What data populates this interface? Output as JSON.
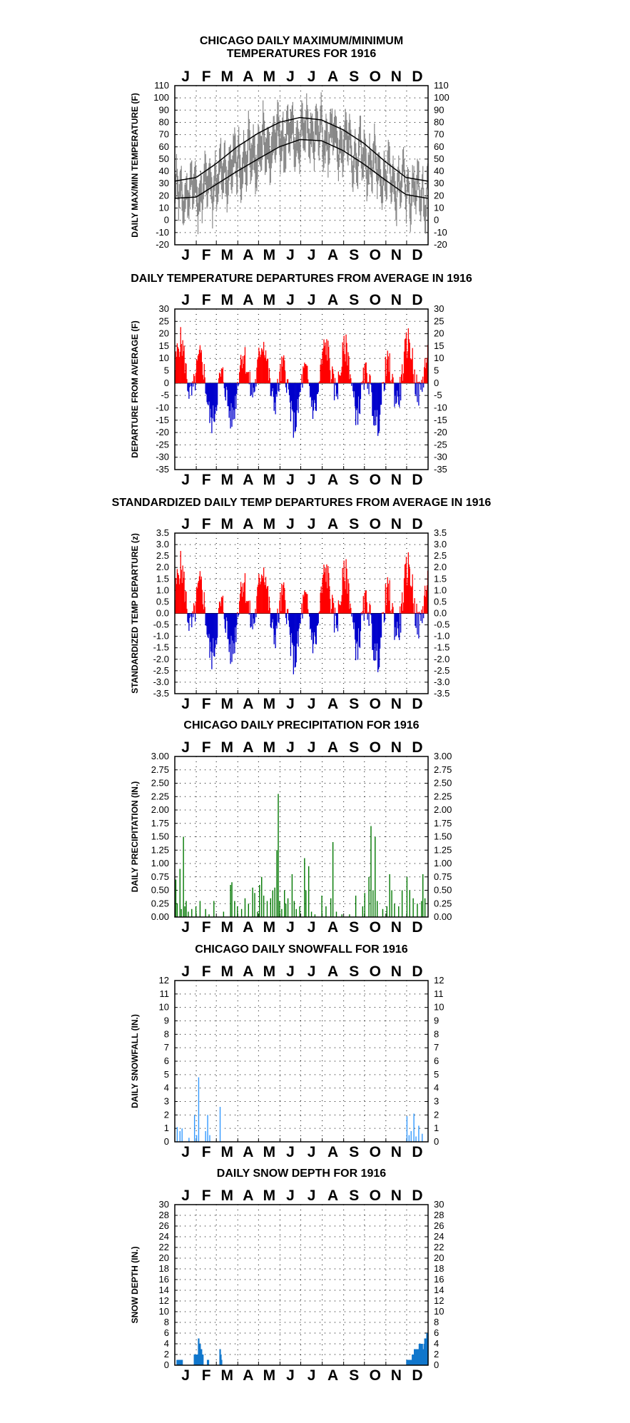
{
  "months": [
    "J",
    "F",
    "M",
    "A",
    "M",
    "J",
    "J",
    "A",
    "S",
    "O",
    "N",
    "D"
  ],
  "colors": {
    "positive": "#ff0000",
    "negative": "#0000cc",
    "precip": "#007700",
    "snow": "#3399ff",
    "snowdepth": "#1177cc",
    "temp_range": "#888888",
    "normals": "#000000"
  },
  "charts": [
    {
      "id": "temp",
      "type": "line",
      "title_lines": [
        "CHICAGO DAILY MAXIMUM/MINIMUM",
        "TEMPERATURES FOR 1916"
      ],
      "ylabel": "DAILY MAX/MIN TEMPERATURE (F)",
      "ylim": [
        -20,
        110
      ],
      "yticks": [
        -20,
        -10,
        0,
        10,
        20,
        30,
        40,
        50,
        60,
        70,
        80,
        90,
        100,
        110
      ],
      "yfmt": 0,
      "normal_max": [
        {
          "day": 0,
          "value": 32
        },
        {
          "day": 31,
          "value": 35
        },
        {
          "day": 59,
          "value": 46
        },
        {
          "day": 90,
          "value": 60
        },
        {
          "day": 120,
          "value": 71
        },
        {
          "day": 151,
          "value": 80
        },
        {
          "day": 181,
          "value": 84
        },
        {
          "day": 212,
          "value": 82
        },
        {
          "day": 243,
          "value": 74
        },
        {
          "day": 273,
          "value": 63
        },
        {
          "day": 304,
          "value": 48
        },
        {
          "day": 334,
          "value": 35
        },
        {
          "day": 365,
          "value": 32
        }
      ],
      "normal_min": [
        {
          "day": 0,
          "value": 18
        },
        {
          "day": 31,
          "value": 19
        },
        {
          "day": 59,
          "value": 29
        },
        {
          "day": 90,
          "value": 40
        },
        {
          "day": 120,
          "value": 50
        },
        {
          "day": 151,
          "value": 60
        },
        {
          "day": 181,
          "value": 66
        },
        {
          "day": 212,
          "value": 65
        },
        {
          "day": 243,
          "value": 57
        },
        {
          "day": 273,
          "value": 46
        },
        {
          "day": 304,
          "value": 33
        },
        {
          "day": 334,
          "value": 21
        },
        {
          "day": 365,
          "value": 18
        }
      ]
    },
    {
      "id": "dep",
      "type": "bar",
      "title_lines": [
        "DAILY TEMPERATURE DEPARTURES FROM AVERAGE IN 1916"
      ],
      "ylabel": "DEPARTURE FROM AVERAGE (F)",
      "ylim": [
        -35,
        30
      ],
      "yticks": [
        -35,
        -30,
        -25,
        -20,
        -15,
        -10,
        -5,
        0,
        5,
        10,
        15,
        20,
        25,
        30
      ],
      "yfmt": 0
    },
    {
      "id": "std",
      "type": "bar",
      "title_lines": [
        "STANDARDIZED DAILY TEMP DEPARTURES FROM AVERAGE IN 1916"
      ],
      "ylabel": "STANDARDIZED TEMP DEPARTURE (z)",
      "ylim": [
        -3.5,
        3.5
      ],
      "yticks": [
        -3.5,
        -3.0,
        -2.5,
        -2.0,
        -1.5,
        -1.0,
        -0.5,
        0.0,
        0.5,
        1.0,
        1.5,
        2.0,
        2.5,
        3.0,
        3.5
      ],
      "yfmt": 1
    },
    {
      "id": "precip",
      "type": "bar",
      "title_lines": [
        "CHICAGO DAILY PRECIPITATION FOR 1916"
      ],
      "ylabel": "DAILY PRECIPITATION (IN.)",
      "ylim": [
        0,
        3
      ],
      "yticks": [
        0.0,
        0.25,
        0.5,
        0.75,
        1.0,
        1.25,
        1.5,
        1.75,
        2.0,
        2.25,
        2.5,
        2.75,
        3.0
      ],
      "yfmt": 2,
      "series": [
        {
          "day": 1,
          "value": 0.7
        },
        {
          "day": 3,
          "value": 0.25
        },
        {
          "day": 7,
          "value": 0.9
        },
        {
          "day": 9,
          "value": 0.15
        },
        {
          "day": 12,
          "value": 1.5
        },
        {
          "day": 14,
          "value": 0.2
        },
        {
          "day": 16,
          "value": 0.3
        },
        {
          "day": 19,
          "value": 0.1
        },
        {
          "day": 24,
          "value": 0.15
        },
        {
          "day": 30,
          "value": 0.2
        },
        {
          "day": 36,
          "value": 0.3
        },
        {
          "day": 44,
          "value": 0.15
        },
        {
          "day": 49,
          "value": 0.05
        },
        {
          "day": 56,
          "value": 0.3
        },
        {
          "day": 70,
          "value": 0.1
        },
        {
          "day": 80,
          "value": 0.6
        },
        {
          "day": 82,
          "value": 0.65
        },
        {
          "day": 86,
          "value": 0.3
        },
        {
          "day": 90,
          "value": 0.2
        },
        {
          "day": 96,
          "value": 0.15
        },
        {
          "day": 101,
          "value": 0.35
        },
        {
          "day": 106,
          "value": 0.25
        },
        {
          "day": 112,
          "value": 0.55
        },
        {
          "day": 115,
          "value": 0.45
        },
        {
          "day": 119,
          "value": 0.1
        },
        {
          "day": 122,
          "value": 0.6
        },
        {
          "day": 125,
          "value": 0.75
        },
        {
          "day": 128,
          "value": 0.4
        },
        {
          "day": 133,
          "value": 0.3
        },
        {
          "day": 138,
          "value": 0.35
        },
        {
          "day": 141,
          "value": 0.5
        },
        {
          "day": 144,
          "value": 0.55
        },
        {
          "day": 147,
          "value": 1.25
        },
        {
          "day": 149,
          "value": 2.3
        },
        {
          "day": 151,
          "value": 0.3
        },
        {
          "day": 154,
          "value": 0.15
        },
        {
          "day": 158,
          "value": 0.5
        },
        {
          "day": 160,
          "value": 0.25
        },
        {
          "day": 163,
          "value": 0.35
        },
        {
          "day": 169,
          "value": 0.8
        },
        {
          "day": 172,
          "value": 0.3
        },
        {
          "day": 175,
          "value": 0.15
        },
        {
          "day": 180,
          "value": 0.2
        },
        {
          "day": 187,
          "value": 1.1
        },
        {
          "day": 189,
          "value": 0.5
        },
        {
          "day": 193,
          "value": 0.95
        },
        {
          "day": 197,
          "value": 0.1
        },
        {
          "day": 202,
          "value": 0.05
        },
        {
          "day": 212,
          "value": 0.4
        },
        {
          "day": 218,
          "value": 0.2
        },
        {
          "day": 225,
          "value": 0.35
        },
        {
          "day": 228,
          "value": 1.4
        },
        {
          "day": 233,
          "value": 0.1
        },
        {
          "day": 241,
          "value": 0.05
        },
        {
          "day": 252,
          "value": 0.05
        },
        {
          "day": 261,
          "value": 0.4
        },
        {
          "day": 271,
          "value": 0.2
        },
        {
          "day": 274,
          "value": 0.45
        },
        {
          "day": 280,
          "value": 0.75
        },
        {
          "day": 283,
          "value": 1.7
        },
        {
          "day": 286,
          "value": 0.5
        },
        {
          "day": 289,
          "value": 1.5
        },
        {
          "day": 292,
          "value": 0.3
        },
        {
          "day": 300,
          "value": 0.15
        },
        {
          "day": 306,
          "value": 0.2
        },
        {
          "day": 310,
          "value": 0.8
        },
        {
          "day": 313,
          "value": 0.5
        },
        {
          "day": 317,
          "value": 0.25
        },
        {
          "day": 323,
          "value": 0.2
        },
        {
          "day": 328,
          "value": 0.5
        },
        {
          "day": 335,
          "value": 0.75
        },
        {
          "day": 339,
          "value": 0.5
        },
        {
          "day": 344,
          "value": 0.35
        },
        {
          "day": 350,
          "value": 0.25
        },
        {
          "day": 356,
          "value": 0.3
        },
        {
          "day": 358,
          "value": 0.8
        },
        {
          "day": 361,
          "value": 0.35
        }
      ]
    },
    {
      "id": "snow",
      "type": "bar",
      "title_lines": [
        "CHICAGO DAILY SNOWFALL FOR 1916"
      ],
      "ylabel": "DAILY SNOWFALL (IN.)",
      "ylim": [
        0,
        12
      ],
      "yticks": [
        0,
        1,
        2,
        3,
        4,
        5,
        6,
        7,
        8,
        9,
        10,
        11,
        12
      ],
      "yfmt": 0,
      "series": [
        {
          "day": 3,
          "value": 1.1
        },
        {
          "day": 7,
          "value": 0.8
        },
        {
          "day": 10,
          "value": 1.0
        },
        {
          "day": 20,
          "value": 0.3
        },
        {
          "day": 28,
          "value": 2.0
        },
        {
          "day": 31,
          "value": 0.5
        },
        {
          "day": 34,
          "value": 4.8
        },
        {
          "day": 44,
          "value": 0.8
        },
        {
          "day": 47,
          "value": 2.0
        },
        {
          "day": 50,
          "value": 0.5
        },
        {
          "day": 65,
          "value": 2.6
        },
        {
          "day": 335,
          "value": 1.9
        },
        {
          "day": 338,
          "value": 0.5
        },
        {
          "day": 341,
          "value": 0.8
        },
        {
          "day": 345,
          "value": 2.1
        },
        {
          "day": 348,
          "value": 0.4
        },
        {
          "day": 352,
          "value": 1.2
        },
        {
          "day": 357,
          "value": 0.6
        }
      ]
    },
    {
      "id": "depth",
      "type": "bar",
      "title_lines": [
        "DAILY SNOW DEPTH FOR 1916"
      ],
      "ylabel": "SNOW DEPTH (IN.)",
      "ylim": [
        0,
        30
      ],
      "yticks": [
        0,
        2,
        4,
        6,
        8,
        10,
        12,
        14,
        16,
        18,
        20,
        22,
        24,
        26,
        28,
        30
      ],
      "yfmt": 0,
      "series": [
        {
          "day": 3,
          "value": 1
        },
        {
          "day": 4,
          "value": 1
        },
        {
          "day": 5,
          "value": 1
        },
        {
          "day": 6,
          "value": 1
        },
        {
          "day": 7,
          "value": 1
        },
        {
          "day": 8,
          "value": 1
        },
        {
          "day": 9,
          "value": 1
        },
        {
          "day": 10,
          "value": 1
        },
        {
          "day": 28,
          "value": 2
        },
        {
          "day": 29,
          "value": 2
        },
        {
          "day": 30,
          "value": 2
        },
        {
          "day": 31,
          "value": 2
        },
        {
          "day": 32,
          "value": 2
        },
        {
          "day": 33,
          "value": 2
        },
        {
          "day": 34,
          "value": 5
        },
        {
          "day": 35,
          "value": 4
        },
        {
          "day": 36,
          "value": 4
        },
        {
          "day": 37,
          "value": 3
        },
        {
          "day": 38,
          "value": 3
        },
        {
          "day": 39,
          "value": 2
        },
        {
          "day": 40,
          "value": 2
        },
        {
          "day": 47,
          "value": 1
        },
        {
          "day": 48,
          "value": 1
        },
        {
          "day": 65,
          "value": 3
        },
        {
          "day": 66,
          "value": 2
        },
        {
          "day": 67,
          "value": 1
        },
        {
          "day": 335,
          "value": 1
        },
        {
          "day": 336,
          "value": 1
        },
        {
          "day": 337,
          "value": 1
        },
        {
          "day": 338,
          "value": 1
        },
        {
          "day": 339,
          "value": 1
        },
        {
          "day": 340,
          "value": 1
        },
        {
          "day": 341,
          "value": 1
        },
        {
          "day": 342,
          "value": 1
        },
        {
          "day": 343,
          "value": 2
        },
        {
          "day": 344,
          "value": 2
        },
        {
          "day": 345,
          "value": 2
        },
        {
          "day": 346,
          "value": 3
        },
        {
          "day": 347,
          "value": 3
        },
        {
          "day": 348,
          "value": 3
        },
        {
          "day": 349,
          "value": 3
        },
        {
          "day": 350,
          "value": 3
        },
        {
          "day": 351,
          "value": 3
        },
        {
          "day": 352,
          "value": 3
        },
        {
          "day": 353,
          "value": 4
        },
        {
          "day": 354,
          "value": 4
        },
        {
          "day": 355,
          "value": 4
        },
        {
          "day": 356,
          "value": 4
        },
        {
          "day": 357,
          "value": 4
        },
        {
          "day": 358,
          "value": 3
        },
        {
          "day": 359,
          "value": 3
        },
        {
          "day": 360,
          "value": 4
        },
        {
          "day": 361,
          "value": 5
        },
        {
          "day": 362,
          "value": 5
        },
        {
          "day": 363,
          "value": 5
        },
        {
          "day": 364,
          "value": 6
        },
        {
          "day": 365,
          "value": 6
        }
      ]
    }
  ]
}
